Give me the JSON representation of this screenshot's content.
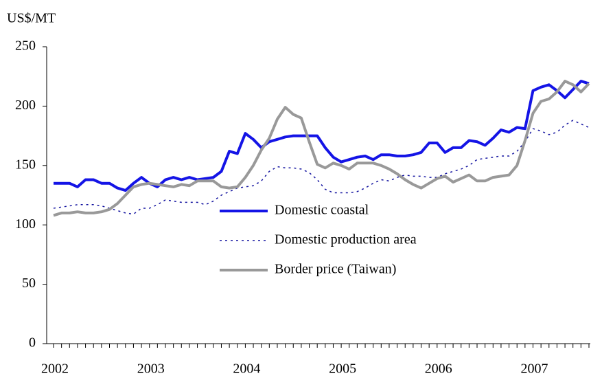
{
  "chart_data": {
    "type": "line",
    "y_label": "US$/MT",
    "categories": [
      "2002",
      null,
      null,
      null,
      null,
      null,
      null,
      null,
      null,
      null,
      null,
      null,
      "2003",
      null,
      null,
      null,
      null,
      null,
      null,
      null,
      null,
      null,
      null,
      null,
      "2004",
      null,
      null,
      null,
      null,
      null,
      null,
      null,
      null,
      null,
      null,
      null,
      "2005",
      null,
      null,
      null,
      null,
      null,
      null,
      null,
      null,
      null,
      null,
      null,
      "2006",
      null,
      null,
      null,
      null,
      null,
      null,
      null,
      null,
      null,
      null,
      null,
      "2007",
      null,
      null,
      null,
      null,
      null,
      null,
      null
    ],
    "series": [
      {
        "name": "Domestic coastal",
        "color": "#1414e6",
        "style": "solid",
        "values": [
          135,
          135,
          135,
          132,
          138,
          138,
          135,
          135,
          131,
          129,
          135,
          140,
          135,
          132,
          138,
          140,
          138,
          140,
          138,
          139,
          140,
          145,
          162,
          160,
          177,
          172,
          165,
          170,
          172,
          174,
          175,
          175,
          175,
          175,
          165,
          157,
          153,
          155,
          157,
          158,
          155,
          159,
          159,
          158,
          158,
          159,
          161,
          169,
          169,
          161,
          165,
          165,
          171,
          170,
          167,
          173,
          180,
          178,
          182,
          181,
          213,
          216,
          218,
          213,
          207,
          214,
          221,
          219
        ]
      },
      {
        "name": "Domestic production area",
        "color": "#1414a0",
        "style": "dotted",
        "values": [
          114,
          115,
          116,
          117,
          117,
          117,
          116,
          114,
          112,
          110,
          109,
          114,
          114,
          117,
          121,
          120,
          119,
          119,
          119,
          117,
          120,
          125,
          128,
          131,
          132,
          133,
          137,
          145,
          149,
          148,
          148,
          147,
          144,
          138,
          130,
          127,
          127,
          127,
          128,
          131,
          135,
          138,
          137,
          140,
          142,
          141,
          141,
          140,
          140,
          143,
          145,
          147,
          150,
          155,
          156,
          157,
          158,
          158,
          162,
          170,
          181,
          179,
          176,
          178,
          184,
          188,
          185,
          182
        ]
      },
      {
        "name": "Border price (Taiwan)",
        "color": "#999999",
        "style": "solid",
        "values": [
          108,
          110,
          110,
          111,
          110,
          110,
          111,
          113,
          118,
          125,
          132,
          134,
          135,
          134,
          133,
          132,
          134,
          133,
          137,
          137,
          137,
          132,
          131,
          132,
          140,
          150,
          163,
          173,
          189,
          199,
          193,
          190,
          170,
          151,
          148,
          152,
          150,
          147,
          152,
          152,
          152,
          150,
          147,
          143,
          138,
          134,
          131,
          135,
          139,
          141,
          136,
          139,
          142,
          137,
          137,
          140,
          141,
          142,
          150,
          171,
          194,
          204,
          206,
          212,
          221,
          218,
          212,
          219
        ]
      }
    ],
    "ylim": [
      0,
      250
    ],
    "yticks": [
      0,
      50,
      100,
      150,
      200,
      250
    ],
    "legend": "center"
  }
}
